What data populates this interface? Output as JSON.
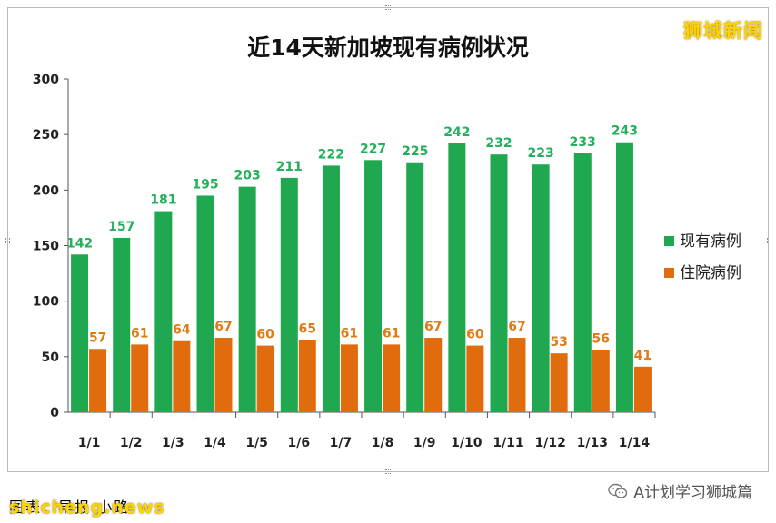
{
  "watermark_top": "狮城新闻",
  "source_note": "图表：早报 小路",
  "site_watermark": "shicheng.news",
  "wechat_mark": {
    "icon": "wechat-icon",
    "text": "A计划学习狮城篇"
  },
  "chart_data": {
    "type": "bar",
    "title": "近14天新加坡现有病例状况",
    "categories": [
      "1/1",
      "1/2",
      "1/3",
      "1/4",
      "1/5",
      "1/6",
      "1/7",
      "1/8",
      "1/9",
      "1/10",
      "1/11",
      "1/12",
      "1/13",
      "1/14"
    ],
    "series": [
      {
        "name": "现有病例",
        "color": "#1fa850",
        "label_color": "#22b05a",
        "values": [
          142,
          157,
          181,
          195,
          203,
          211,
          222,
          227,
          225,
          242,
          232,
          223,
          233,
          243
        ]
      },
      {
        "name": "住院病例",
        "color": "#e06c0e",
        "label_color": "#e07a12",
        "values": [
          57,
          61,
          64,
          67,
          60,
          65,
          61,
          61,
          67,
          60,
          67,
          53,
          56,
          41
        ]
      }
    ],
    "yticks": [
      "0",
      "50",
      "100",
      "150",
      "200",
      "250",
      "300"
    ],
    "ylim": [
      0,
      300
    ],
    "grid": false,
    "legend_position": "right"
  }
}
